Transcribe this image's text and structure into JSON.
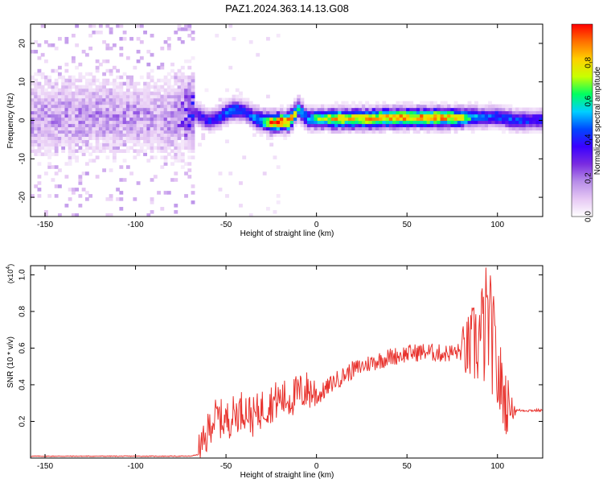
{
  "title": "PAZ1.2024.363.14.13.G08",
  "colors": {
    "snr_line": "#e8332e",
    "colormap": [
      "#ffffff",
      "#e6c8f4",
      "#b78de8",
      "#7a2ce0",
      "#3a00ff",
      "#0048ff",
      "#00d0ff",
      "#00ff60",
      "#c8ff00",
      "#ffd000",
      "#ff7000",
      "#ff0000"
    ]
  },
  "chart_data": [
    {
      "type": "heatmap",
      "xlabel": "Height of straight line (km)",
      "ylabel": "Frequency (Hz)",
      "xlim": [
        -158,
        125
      ],
      "ylim": [
        -25,
        25
      ],
      "xticks": [
        "-150",
        "-100",
        "-50",
        "0",
        "50",
        "100"
      ],
      "xtick_values": [
        -150,
        -100,
        -50,
        0,
        50,
        100
      ],
      "yticks": [
        "-20",
        "-10",
        "0",
        "10",
        "20"
      ],
      "ytick_values": [
        -20,
        -10,
        0,
        10,
        20
      ],
      "colorbar": {
        "label": "Normalized spectral amplitude",
        "range": [
          0,
          1
        ],
        "ticks": [
          "0.0",
          "0.2",
          "0.4",
          "0.6",
          "0.8"
        ],
        "tick_values": [
          0.0,
          0.2,
          0.4,
          0.6,
          0.8
        ]
      },
      "ridge": {
        "x": [
          -158,
          -140,
          -120,
          -100,
          -80,
          -70,
          -65,
          -60,
          -55,
          -50,
          -45,
          -40,
          -35,
          -30,
          -25,
          -20,
          -15,
          -10,
          -5,
          0,
          10,
          20,
          30,
          40,
          50,
          60,
          70,
          80,
          90,
          100,
          110,
          125
        ],
        "freq": [
          0.5,
          1.0,
          1.5,
          1.0,
          0.5,
          2.5,
          1.5,
          0.0,
          0.5,
          2.0,
          3.0,
          2.5,
          1.0,
          0.0,
          -0.5,
          -0.3,
          -0.2,
          3.0,
          0.5,
          0.5,
          0.5,
          0.5,
          0.5,
          0.8,
          0.8,
          0.8,
          0.8,
          0.7,
          1.0,
          1.0,
          0.0,
          0.2
        ],
        "peak_amplitude": [
          0.15,
          0.15,
          0.15,
          0.15,
          0.15,
          0.3,
          0.35,
          0.4,
          0.4,
          0.45,
          0.5,
          0.4,
          0.45,
          0.6,
          0.9,
          0.95,
          0.9,
          0.6,
          0.5,
          0.65,
          0.8,
          0.8,
          0.8,
          0.85,
          0.85,
          0.85,
          0.85,
          0.75,
          0.45,
          0.45,
          0.45,
          0.4
        ]
      }
    },
    {
      "type": "line",
      "xlabel": "Height of straight line (km)",
      "ylabel": "SNR (10 * v/v)",
      "y_multiplier": "(x10",
      "y_multiplier_exp": "4",
      "xlim": [
        -158,
        125
      ],
      "ylim": [
        0,
        1.05
      ],
      "xticks": [
        "-150",
        "-100",
        "-50",
        "0",
        "50",
        "100"
      ],
      "xtick_values": [
        -150,
        -100,
        -50,
        0,
        50,
        100
      ],
      "yticks": [
        "0.2",
        "0.4",
        "0.6",
        "0.8",
        "1.0"
      ],
      "ytick_values": [
        0.2,
        0.4,
        0.6,
        0.8,
        1.0
      ],
      "series": [
        {
          "x": [
            -158,
            -140,
            -120,
            -100,
            -80,
            -70,
            -65,
            -62,
            -60,
            -58,
            -55,
            -50,
            -45,
            -40,
            -35,
            -30,
            -25,
            -20,
            -15,
            -10,
            -5,
            0,
            10,
            20,
            30,
            40,
            50,
            60,
            70,
            80,
            85,
            90,
            93,
            95,
            98,
            100,
            105,
            110,
            125
          ],
          "y": [
            0.01,
            0.01,
            0.01,
            0.01,
            0.01,
            0.01,
            0.02,
            0.05,
            0.12,
            0.18,
            0.2,
            0.18,
            0.22,
            0.25,
            0.2,
            0.25,
            0.28,
            0.3,
            0.3,
            0.33,
            0.35,
            0.33,
            0.42,
            0.48,
            0.52,
            0.55,
            0.57,
            0.58,
            0.57,
            0.58,
            0.6,
            0.65,
            0.7,
            0.75,
            0.6,
            0.45,
            0.3,
            0.26,
            0.26
          ]
        }
      ]
    }
  ]
}
